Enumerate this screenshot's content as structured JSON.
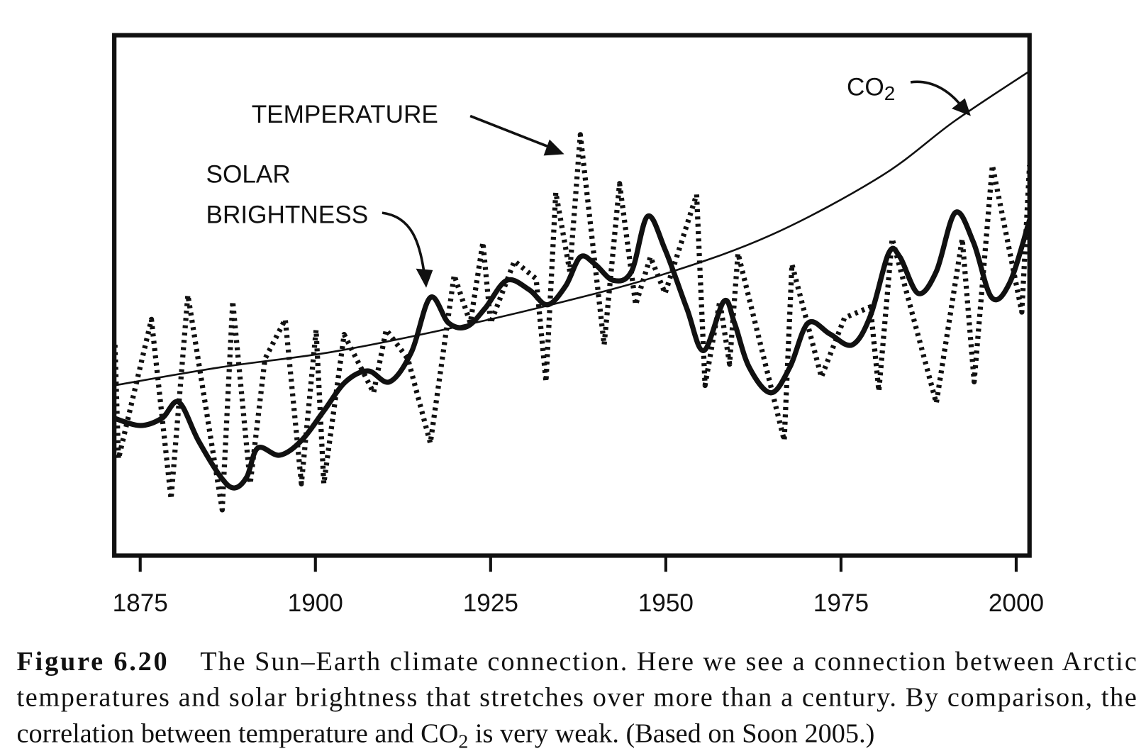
{
  "chart_data": {
    "type": "line",
    "annotations": {
      "temperature": "TEMPERATURE",
      "solar_1": "SOLAR",
      "solar_2": "BRIGHTNESS",
      "co2": "CO",
      "co2_sub": "2"
    },
    "xlim": [
      1871.3,
      2001.9
    ],
    "xticks": [
      1875,
      1900,
      1925,
      1950,
      1975,
      2000
    ],
    "ylim": [
      0,
      100
    ],
    "series": [
      {
        "name": "SOLAR BRIGHTNESS",
        "color": "#111111",
        "style": "solid-thick",
        "x": [
          1871.3,
          1875,
          1878.1,
          1880.5,
          1883.3,
          1886.5,
          1888.4,
          1890.2,
          1891.8,
          1894.9,
          1898,
          1901.2,
          1904.3,
          1907.5,
          1910.6,
          1913.7,
          1916.4,
          1919,
          1921.6,
          1924.2,
          1927.3,
          1930.5,
          1933.1,
          1935.7,
          1937.8,
          1939.9,
          1942.5,
          1945.1,
          1947.4,
          1949.9,
          1953,
          1955.4,
          1958.3,
          1959.8,
          1961.9,
          1965,
          1967.7,
          1970.3,
          1973.4,
          1976.6,
          1979.2,
          1981.8,
          1983.4,
          1986,
          1988.6,
          1991.3,
          1993.9,
          1996.5,
          1999.1,
          2001.9
        ],
        "values": [
          26.4,
          25.0,
          26.4,
          29.5,
          22.1,
          15.1,
          13.0,
          15.1,
          20.7,
          19.3,
          22.1,
          27.8,
          33.4,
          35.5,
          33.4,
          39.1,
          49.6,
          44.7,
          44.0,
          47.5,
          52.9,
          51.1,
          48.2,
          51.8,
          57.4,
          56.0,
          52.9,
          54.6,
          65.2,
          58.8,
          47.5,
          39.4,
          48.9,
          44.7,
          36.2,
          31.3,
          36.2,
          44.7,
          42.6,
          40.5,
          46.1,
          58.1,
          57.4,
          50.4,
          54.6,
          65.9,
          60.2,
          49.6,
          52.5,
          64.5
        ]
      },
      {
        "name": "TEMPERATURE",
        "color": "#111111",
        "style": "dotted",
        "x": [
          1871.4,
          1871.9,
          1876.6,
          1879.4,
          1881.8,
          1886.7,
          1888.2,
          1890.7,
          1892.8,
          1895.7,
          1898.0,
          1900.1,
          1901.2,
          1904.1,
          1908.3,
          1910.1,
          1913.2,
          1916.4,
          1919.8,
          1922.1,
          1923.9,
          1925.0,
          1928.4,
          1931.5,
          1932.9,
          1934.3,
          1936.3,
          1937.8,
          1941.2,
          1943.4,
          1945.7,
          1947.8,
          1949.9,
          1954.4,
          1955.6,
          1957.7,
          1959.1,
          1960.3,
          1966.9,
          1968.0,
          1972.2,
          1975.5,
          1979.2,
          1980.4,
          1982.3,
          1988.6,
          1992.3,
          1994.0,
          1996.6,
          2000.8,
          2001.9
        ],
        "values": [
          40.5,
          18.6,
          45.4,
          10.9,
          50.1,
          8.8,
          48.9,
          13.8,
          37.8,
          45.4,
          13.8,
          43.4,
          13.8,
          42.5,
          31.3,
          43.4,
          37.8,
          21.6,
          53.9,
          44.7,
          60.2,
          44.7,
          56.6,
          53.2,
          33.4,
          69.8,
          54.6,
          80.9,
          40.5,
          71.5,
          48.2,
          57.4,
          50.4,
          69.4,
          32.7,
          48.9,
          36.8,
          58.1,
          22.1,
          56.0,
          34.3,
          45.7,
          47.8,
          31.6,
          60.9,
          29.3,
          60.9,
          33.4,
          75.0,
          46.8,
          75.0
        ]
      },
      {
        "name": "CO2",
        "color": "#111111",
        "style": "solid-thin",
        "x": [
          1871.3,
          1886.5,
          1902.2,
          1917.9,
          1933.6,
          1949.3,
          1965.0,
          1980.7,
          1991.2,
          2001.9
        ],
        "values": [
          32.7,
          36.2,
          39.1,
          43.3,
          48.2,
          53.9,
          61.6,
          72.9,
          83.5,
          93.1
        ]
      }
    ]
  },
  "caption": {
    "label": "Figure 6.20",
    "line1": "The Sun–Earth climate connection. Here we see a connection between Arctic",
    "line2": "temperatures and solar brightness that stretches over more than a century. By comparison, the",
    "line3a": "correlation between temperature and CO",
    "line3sub": "2",
    "line3b": " is very weak. (Based on Soon 2005.)"
  }
}
